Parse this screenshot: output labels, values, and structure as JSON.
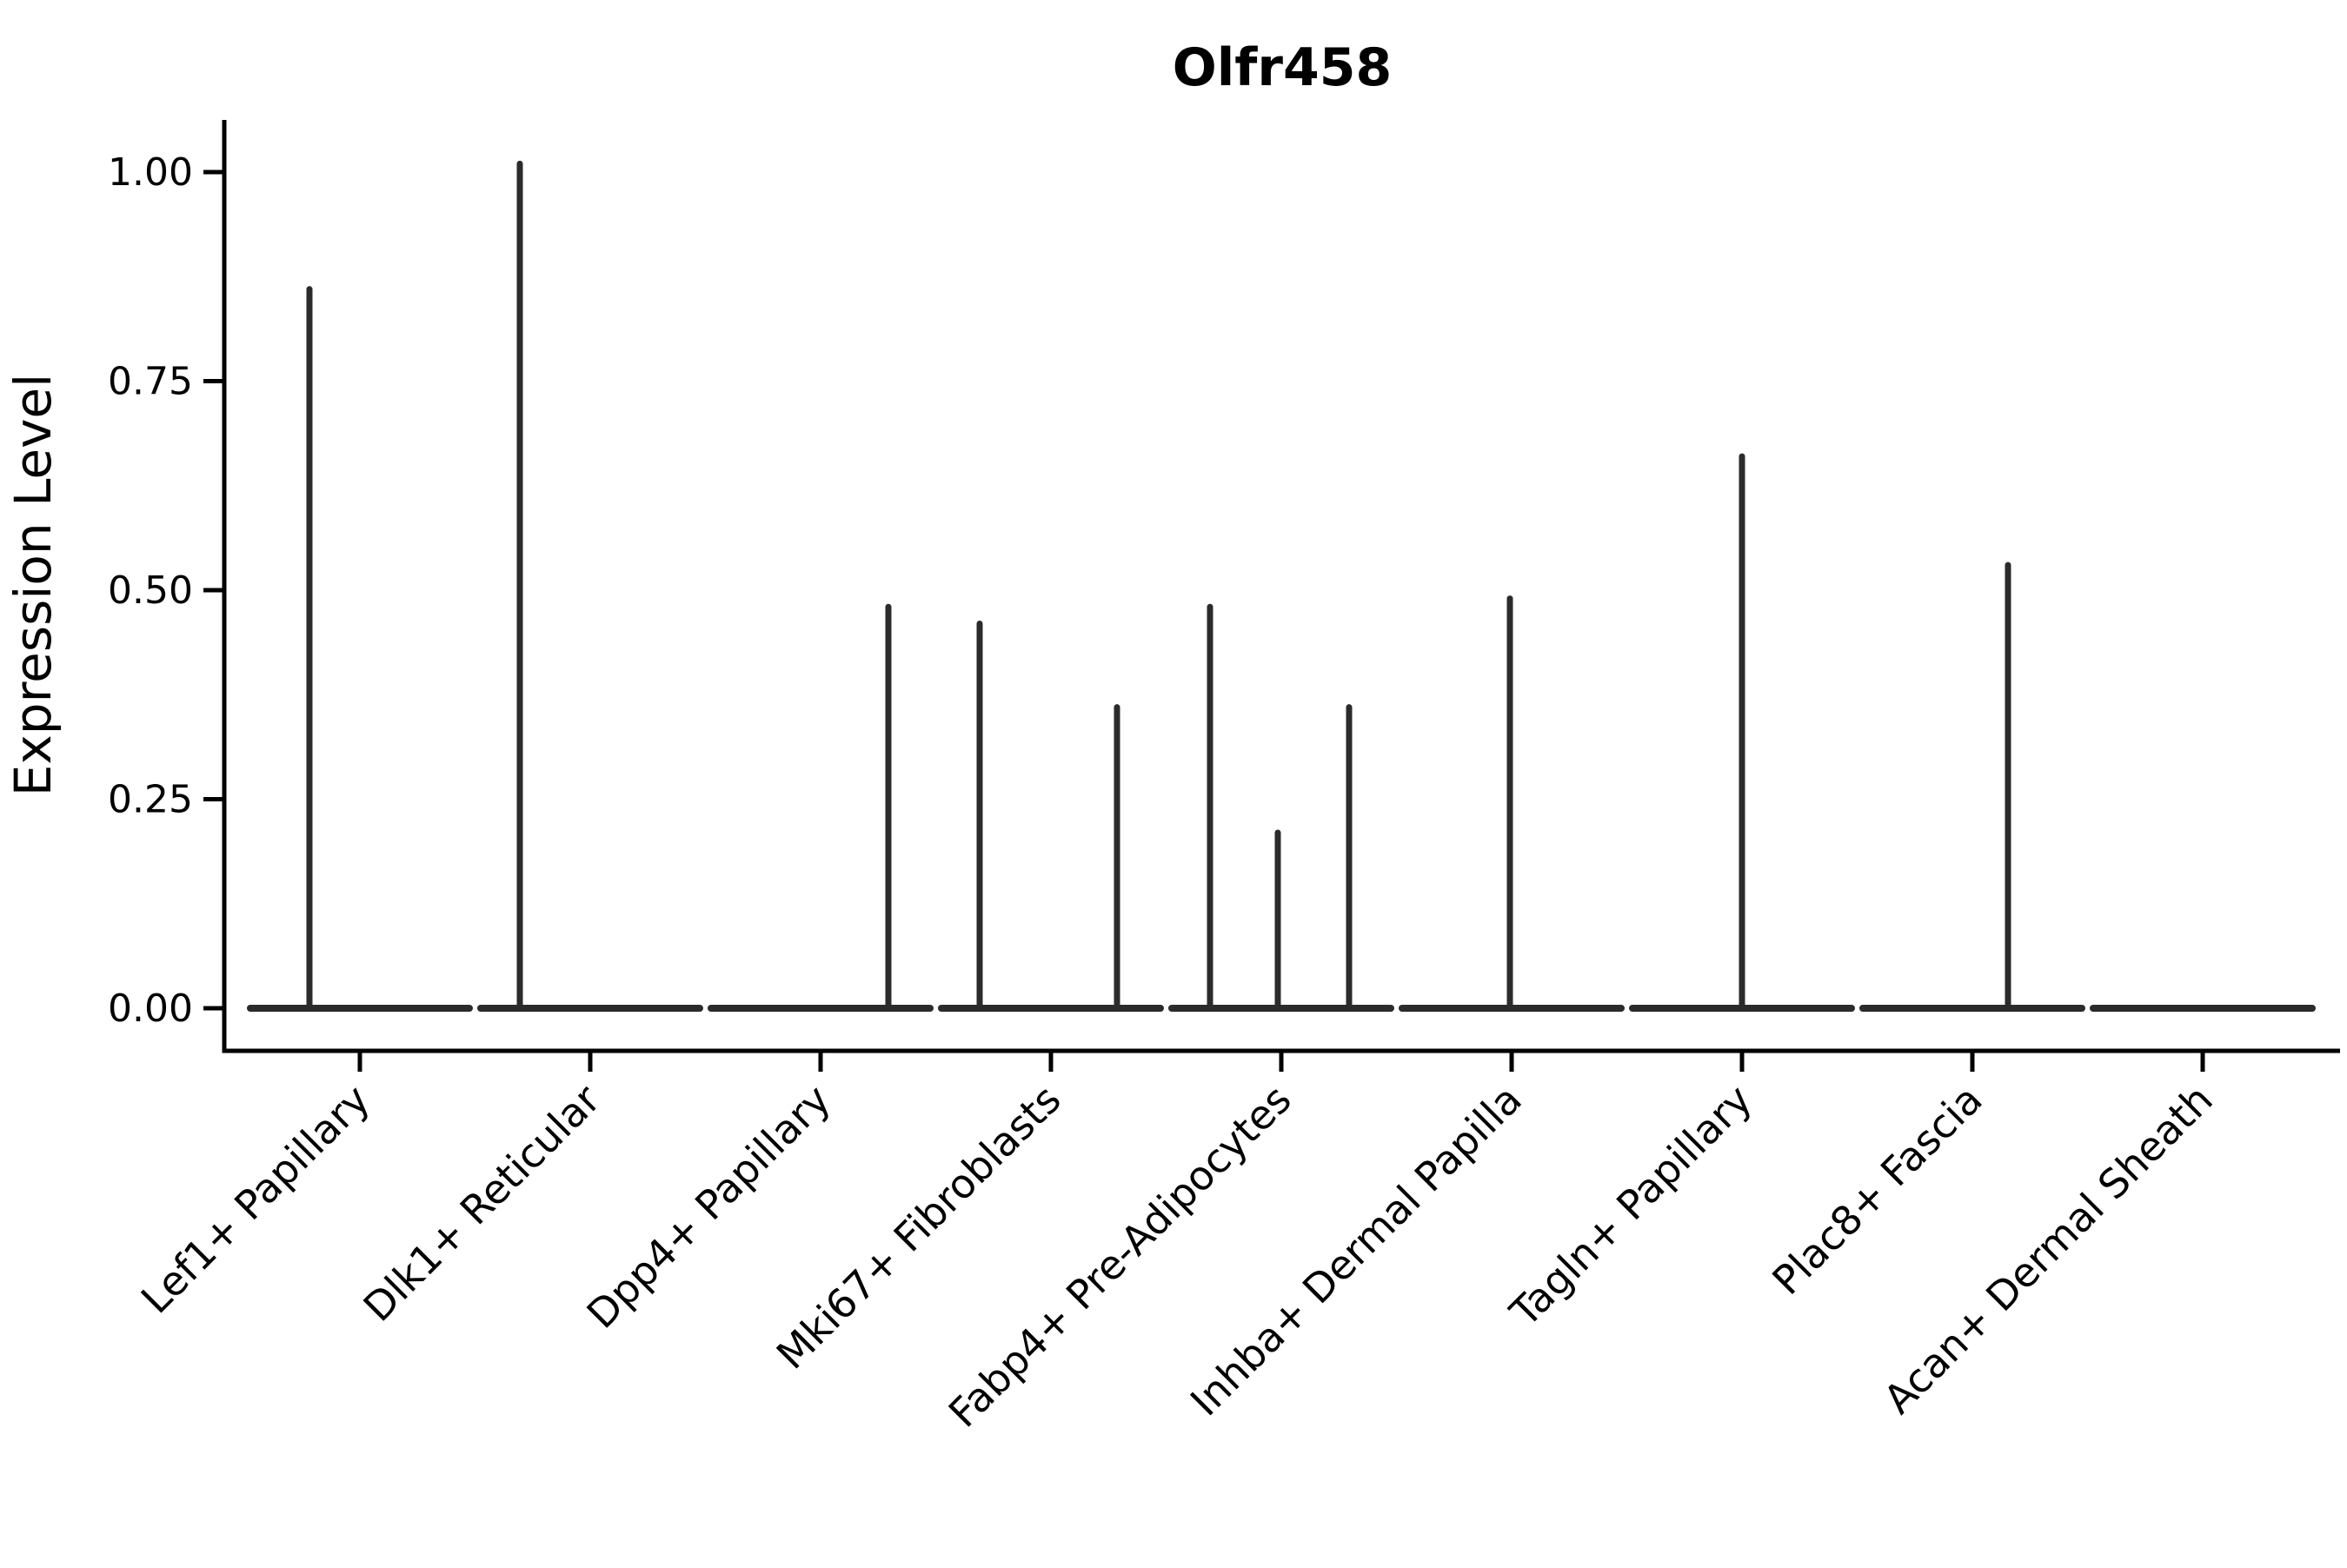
{
  "title": "Olfr458",
  "y_axis": {
    "label": "Expression Level",
    "tick_labels": [
      "1.00",
      "0.75",
      "0.50",
      "0.25",
      "0.00"
    ]
  },
  "chart_data": {
    "type": "violin",
    "title": "Olfr458",
    "xlabel": "",
    "ylabel": "Expression Level",
    "ylim": [
      0,
      1.05
    ],
    "yticks": [
      1.0,
      0.75,
      0.5,
      0.25,
      0.0
    ],
    "grid": false,
    "legend": false,
    "categories": [
      "Lef1+ Papillary",
      "Dlk1+ Reticular",
      "Dpp4+ Papillary",
      "Mki67+ Fibroblasts",
      "Fabp4+ Pre-Adipocytes",
      "Inhba+ Dermal Papilla",
      "Tagln+ Papillary",
      "Plac8+ Fascia",
      "Acan+ Dermal Sheath"
    ],
    "series": [
      {
        "name": "Lef1+ Papillary",
        "baseline_value": 0,
        "spikes": [
          {
            "value": 0.86,
            "offset": -58
          }
        ]
      },
      {
        "name": "Dlk1+ Reticular",
        "baseline_value": 0,
        "spikes": [
          {
            "value": 1.01,
            "offset": -81
          }
        ]
      },
      {
        "name": "Dpp4+ Papillary",
        "baseline_value": 0,
        "spikes": [
          {
            "value": 0.48,
            "offset": 78
          }
        ]
      },
      {
        "name": "Mki67+ Fibroblasts",
        "baseline_value": 0,
        "spikes": [
          {
            "value": 0.46,
            "offset": -82
          },
          {
            "value": 0.36,
            "offset": 76
          }
        ]
      },
      {
        "name": "Fabp4+ Pre-Adipocytes",
        "baseline_value": 0,
        "spikes": [
          {
            "value": 0.48,
            "offset": -82
          },
          {
            "value": 0.21,
            "offset": -4
          },
          {
            "value": 0.36,
            "offset": 78
          }
        ]
      },
      {
        "name": "Inhba+ Dermal Papilla",
        "baseline_value": 0,
        "spikes": [
          {
            "value": 0.49,
            "offset": -2
          }
        ]
      },
      {
        "name": "Tagln+ Papillary",
        "baseline_value": 0,
        "spikes": [
          {
            "value": 0.66,
            "offset": 0
          }
        ]
      },
      {
        "name": "Plac8+ Fascia",
        "baseline_value": 0,
        "spikes": [
          {
            "value": 0.53,
            "offset": 41
          }
        ]
      },
      {
        "name": "Acan+ Dermal Sheath",
        "baseline_value": 0,
        "spikes": []
      }
    ],
    "colors": {
      "violin": "#2b2b2b",
      "axis": "#000000",
      "background": "#ffffff"
    }
  }
}
